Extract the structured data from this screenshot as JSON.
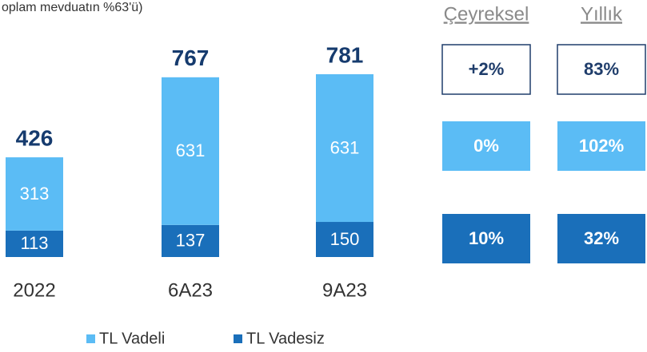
{
  "chart_data": {
    "type": "stacked_bar",
    "subtitle": "oplam mevduatın %63'ü)",
    "categories": [
      "2022",
      "6A23",
      "9A23"
    ],
    "series": [
      {
        "name": "TL Vadeli",
        "color": "#5bbcf5",
        "values": [
          313,
          631,
          631
        ]
      },
      {
        "name": "TL Vadesiz",
        "color": "#1a6fba",
        "values": [
          113,
          137,
          150
        ]
      }
    ],
    "totals": [
      426,
      767,
      781
    ],
    "change_table": {
      "columns": [
        "Çeyreksel",
        "Yıllık"
      ],
      "rows": [
        {
          "style": "outline",
          "color": "#1f3d6b",
          "values": [
            2,
            83
          ],
          "value_labels": [
            "+2%",
            "83%"
          ]
        },
        {
          "style": "filled",
          "color": "#5bbcf5",
          "values": [
            0,
            102
          ],
          "value_labels": [
            "0%",
            "102%"
          ]
        },
        {
          "style": "filled",
          "color": "#1a6fba",
          "values": [
            10,
            32
          ],
          "value_labels": [
            "10%",
            "32%"
          ]
        }
      ]
    }
  }
}
